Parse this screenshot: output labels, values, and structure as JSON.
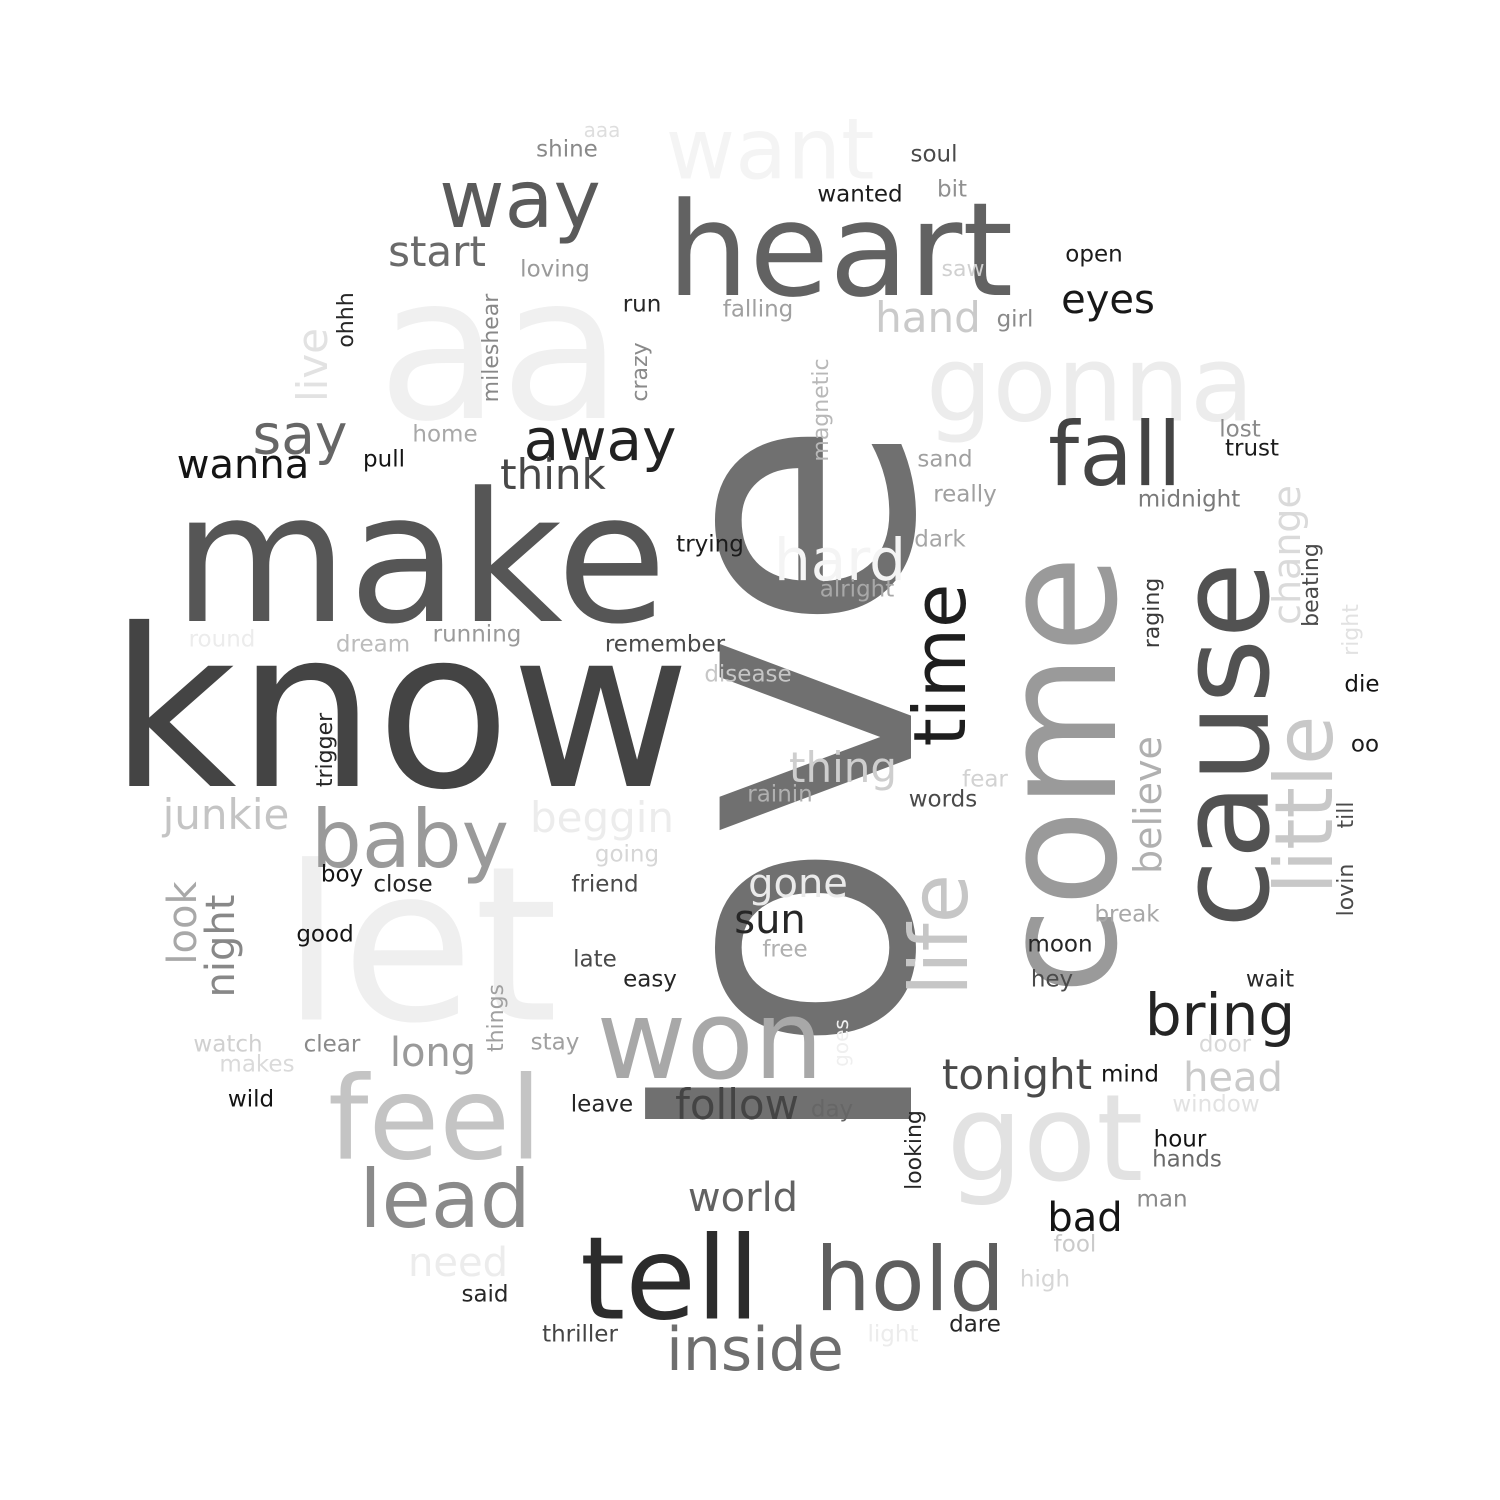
{
  "cloud": {
    "words": [
      {
        "text": "love",
        "color": "#707070"
      },
      {
        "text": "know",
        "color": "#444444"
      },
      {
        "text": "make",
        "color": "#565656"
      },
      {
        "text": "aa",
        "color": "#f0f0f0"
      },
      {
        "text": "let",
        "color": "#efefef"
      },
      {
        "text": "heart",
        "color": "#626262"
      },
      {
        "text": "come",
        "color": "#9a9a9a"
      },
      {
        "text": "cause",
        "color": "#525252"
      },
      {
        "text": "gonna",
        "color": "#ececec"
      },
      {
        "text": "want",
        "color": "#f4f4f4"
      },
      {
        "text": "way",
        "color": "#5a5a5a"
      },
      {
        "text": "tell",
        "color": "#2c2c2c"
      },
      {
        "text": "won",
        "color": "#a8a8a8"
      },
      {
        "text": "feel",
        "color": "#c4c4c4"
      },
      {
        "text": "got",
        "color": "#e2e2e2"
      },
      {
        "text": "fall",
        "color": "#444444"
      },
      {
        "text": "hold",
        "color": "#5e5e5e"
      },
      {
        "text": "lead",
        "color": "#8a8a8a"
      },
      {
        "text": "baby",
        "color": "#9a9a9a"
      },
      {
        "text": "little",
        "color": "#c8c8c8"
      },
      {
        "text": "life",
        "color": "#c6c6c6"
      },
      {
        "text": "time",
        "color": "#1e1e1e"
      },
      {
        "text": "away",
        "color": "#222222"
      },
      {
        "text": "bring",
        "color": "#242424"
      },
      {
        "text": "inside",
        "color": "#6e6e6e"
      },
      {
        "text": "hard",
        "color": "#f4f4f4"
      },
      {
        "text": "say",
        "color": "#666666"
      },
      {
        "text": "think",
        "color": "#484848"
      },
      {
        "text": "start",
        "color": "#6a6a6a"
      },
      {
        "text": "eyes",
        "color": "#181818"
      },
      {
        "text": "wanna",
        "color": "#141414"
      },
      {
        "text": "hand",
        "color": "#cacaca"
      },
      {
        "text": "junkie",
        "color": "#c4c4c4"
      },
      {
        "text": "beggin",
        "color": "#ececec"
      },
      {
        "text": "thing",
        "color": "#cecece"
      },
      {
        "text": "live",
        "color": "#e2e2e2"
      },
      {
        "text": "tonight",
        "color": "#4a4a4a"
      },
      {
        "text": "follow",
        "color": "#444444"
      },
      {
        "text": "world",
        "color": "#626262"
      },
      {
        "text": "sun",
        "color": "#262626"
      },
      {
        "text": "gone",
        "color": "#eaeaea"
      },
      {
        "text": "bad",
        "color": "#141414"
      },
      {
        "text": "head",
        "color": "#cacaca"
      },
      {
        "text": "need",
        "color": "#ececec"
      },
      {
        "text": "long",
        "color": "#9a9a9a"
      },
      {
        "text": "look",
        "color": "#a8a8a8"
      },
      {
        "text": "night",
        "color": "#888888"
      },
      {
        "text": "believe",
        "color": "#b0b0b0"
      },
      {
        "text": "change",
        "color": "#dadada"
      },
      {
        "text": "shine",
        "color": "#8a8a8a"
      },
      {
        "text": "aaa",
        "color": "#dedede"
      },
      {
        "text": "soul",
        "color": "#4a4a4a"
      },
      {
        "text": "bit",
        "color": "#909090"
      },
      {
        "text": "wanted",
        "color": "#1c1c1c"
      },
      {
        "text": "open",
        "color": "#1c1c1c"
      },
      {
        "text": "saw",
        "color": "#d0d0d0"
      },
      {
        "text": "loving",
        "color": "#9a9a9a"
      },
      {
        "text": "falling",
        "color": "#a0a0a0"
      },
      {
        "text": "run",
        "color": "#262626"
      },
      {
        "text": "girl",
        "color": "#8a8a8a"
      },
      {
        "text": "lost",
        "color": "#8a8a8a"
      },
      {
        "text": "trust",
        "color": "#1c1c1c"
      },
      {
        "text": "midnight",
        "color": "#7a7a7a"
      },
      {
        "text": "sand",
        "color": "#a0a0a0"
      },
      {
        "text": "really",
        "color": "#a0a0a0"
      },
      {
        "text": "dark",
        "color": "#a6a6a6"
      },
      {
        "text": "home",
        "color": "#a8a8a8"
      },
      {
        "text": "pull",
        "color": "#141414"
      },
      {
        "text": "trying",
        "color": "#1c1c1c"
      },
      {
        "text": "alright",
        "color": "#a8a8a8"
      },
      {
        "text": "running",
        "color": "#9a9a9a"
      },
      {
        "text": "dream",
        "color": "#bcbcbc"
      },
      {
        "text": "round",
        "color": "#ececec"
      },
      {
        "text": "remember",
        "color": "#4a4a4a"
      },
      {
        "text": "disease",
        "color": "#c6c6c6"
      },
      {
        "text": "die",
        "color": "#141414"
      },
      {
        "text": "oo",
        "color": "#1c1c1c"
      },
      {
        "text": "fear",
        "color": "#d2d2d2"
      },
      {
        "text": "words",
        "color": "#4a4a4a"
      },
      {
        "text": "rainin",
        "color": "#b0b0b0"
      },
      {
        "text": "going",
        "color": "#d6d6d6"
      },
      {
        "text": "boy",
        "color": "#141414"
      },
      {
        "text": "close",
        "color": "#262626"
      },
      {
        "text": "friend",
        "color": "#4a4a4a"
      },
      {
        "text": "free",
        "color": "#b0b0b0"
      },
      {
        "text": "break",
        "color": "#a8a8a8"
      },
      {
        "text": "moon",
        "color": "#262626"
      },
      {
        "text": "hey",
        "color": "#4a4a4a"
      },
      {
        "text": "wait",
        "color": "#2a2a2a"
      },
      {
        "text": "good",
        "color": "#141414"
      },
      {
        "text": "late",
        "color": "#4a4a4a"
      },
      {
        "text": "easy",
        "color": "#262626"
      },
      {
        "text": "watch",
        "color": "#d0d0d0"
      },
      {
        "text": "clear",
        "color": "#8a8a8a"
      },
      {
        "text": "makes",
        "color": "#dadada"
      },
      {
        "text": "stay",
        "color": "#a0a0a0"
      },
      {
        "text": "door",
        "color": "#d8d8d8"
      },
      {
        "text": "mind",
        "color": "#141414"
      },
      {
        "text": "wild",
        "color": "#141414"
      },
      {
        "text": "leave",
        "color": "#262626"
      },
      {
        "text": "day",
        "color": "#666666"
      },
      {
        "text": "window",
        "color": "#e2e2e2"
      },
      {
        "text": "hour",
        "color": "#141414"
      },
      {
        "text": "hands",
        "color": "#6a6a6a"
      },
      {
        "text": "man",
        "color": "#8a8a8a"
      },
      {
        "text": "fool",
        "color": "#cacaca"
      },
      {
        "text": "high",
        "color": "#d6d6d6"
      },
      {
        "text": "said",
        "color": "#262626"
      },
      {
        "text": "thriller",
        "color": "#444444"
      },
      {
        "text": "light",
        "color": "#ececec"
      },
      {
        "text": "dare",
        "color": "#262626"
      },
      {
        "text": "ohhh",
        "color": "#262626"
      },
      {
        "text": "mileshear",
        "color": "#888888"
      },
      {
        "text": "crazy",
        "color": "#8a8a8a"
      },
      {
        "text": "magnetic",
        "color": "#b8b8b8"
      },
      {
        "text": "raging",
        "color": "#3a3a3a"
      },
      {
        "text": "beating",
        "color": "#4a4a4a"
      },
      {
        "text": "right",
        "color": "#e2e2e2"
      },
      {
        "text": "trigger",
        "color": "#262626"
      },
      {
        "text": "till",
        "color": "#4a4a4a"
      },
      {
        "text": "lovin",
        "color": "#4a4a4a"
      },
      {
        "text": "things",
        "color": "#a0a0a0"
      },
      {
        "text": "goes",
        "color": "#efefef"
      },
      {
        "text": "looking",
        "color": "#262626"
      }
    ]
  }
}
